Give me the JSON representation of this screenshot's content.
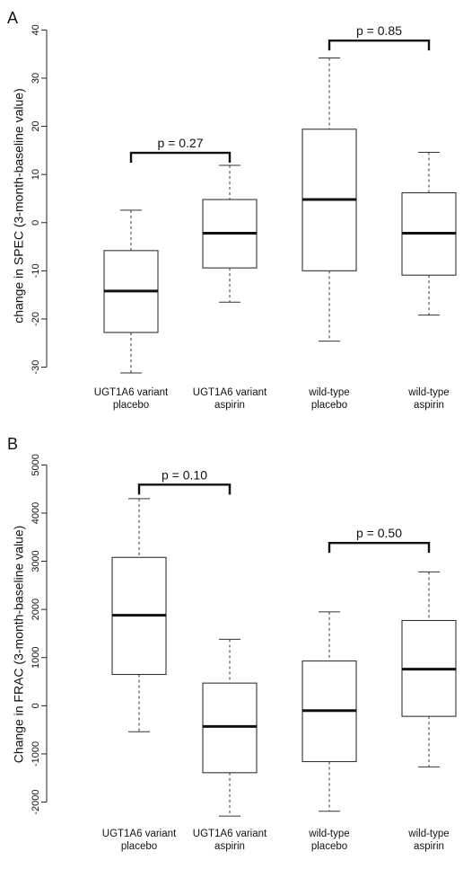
{
  "chart_data": [
    {
      "type": "box",
      "panel_label": "A",
      "ylabel": "change in SPEC (3-month-baseline value)",
      "yticks": [
        -30,
        -20,
        -10,
        0,
        10,
        20,
        30,
        40
      ],
      "ylim": [
        -34,
        41
      ],
      "categories": [
        [
          "UGT1A6 variant",
          "placebo"
        ],
        [
          "UGT1A6 variant",
          "aspirin"
        ],
        [
          "wild-type",
          "placebo"
        ],
        [
          "wild-type",
          "aspirin"
        ]
      ],
      "boxes": [
        {
          "whisker_low": -31.2,
          "q1": -22.8,
          "median": -14.2,
          "q3": -5.8,
          "whisker_high": 2.6
        },
        {
          "whisker_low": -16.5,
          "q1": -9.4,
          "median": -2.2,
          "q3": 4.8,
          "whisker_high": 11.9
        },
        {
          "whisker_low": -24.6,
          "q1": -10.0,
          "median": 4.8,
          "q3": 19.4,
          "whisker_high": 34.2
        },
        {
          "whisker_low": -19.2,
          "q1": -10.9,
          "median": -2.2,
          "q3": 6.2,
          "whisker_high": 14.6
        }
      ],
      "comparisons": [
        {
          "from": 0,
          "to": 1,
          "label": "p = 0.27",
          "y": 14.5
        },
        {
          "from": 2,
          "to": 3,
          "label": "p = 0.85",
          "y": 37.8
        }
      ]
    },
    {
      "type": "box",
      "panel_label": "B",
      "ylabel": "Change in FRAC (3-month-baseline value)",
      "yticks": [
        -2000,
        -1000,
        0,
        1000,
        2000,
        3000,
        4000,
        5000
      ],
      "ylim": [
        -2550,
        5100
      ],
      "categories": [
        [
          "UGT1A6 variant",
          "placebo"
        ],
        [
          "UGT1A6 variant",
          "aspirin"
        ],
        [
          "wild-type",
          "placebo"
        ],
        [
          "wild-type",
          "aspirin"
        ]
      ],
      "boxes": [
        {
          "whisker_low": -540,
          "q1": 650,
          "median": 1880,
          "q3": 3080,
          "whisker_high": 4300
        },
        {
          "whisker_low": -2290,
          "q1": -1390,
          "median": -430,
          "q3": 470,
          "whisker_high": 1380
        },
        {
          "whisker_low": -2190,
          "q1": -1160,
          "median": -100,
          "q3": 930,
          "whisker_high": 1950
        },
        {
          "whisker_low": -1270,
          "q1": -220,
          "median": 760,
          "q3": 1770,
          "whisker_high": 2780
        }
      ],
      "comparisons": [
        {
          "from": 0,
          "to": 1,
          "label": "p = 0.10",
          "y": 4590
        },
        {
          "from": 2,
          "to": 3,
          "label": "p = 0.50",
          "y": 3380
        }
      ]
    }
  ]
}
